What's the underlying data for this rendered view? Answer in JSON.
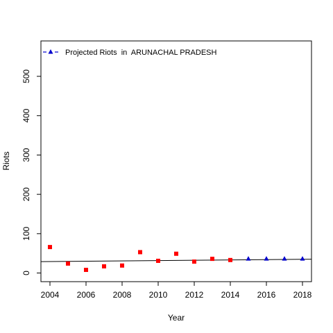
{
  "chart_data": {
    "type": "scatter",
    "xlabel": "Year",
    "ylabel": "Riots",
    "xlim": [
      2003.5,
      2018.5
    ],
    "ylim": [
      -22,
      590
    ],
    "x_ticks": [
      2004,
      2006,
      2008,
      2010,
      2012,
      2014,
      2016,
      2018
    ],
    "y_ticks": [
      0,
      100,
      200,
      300,
      400,
      500
    ],
    "grid": false,
    "legend_position": "top-left",
    "legend_entries": [
      "Projected Riots  in  ARUNACHAL PRADESH"
    ],
    "series": [
      {
        "marker": "square",
        "color": "#ff0000",
        "x": [
          2004,
          2005,
          2006,
          2007,
          2008,
          2009,
          2010,
          2011,
          2012,
          2013,
          2014
        ],
        "values": [
          66,
          24,
          8,
          17,
          19,
          53,
          31,
          49,
          29,
          36,
          33
        ]
      },
      {
        "name": "Projected Riots  in  ARUNACHAL PRADESH",
        "marker": "triangle",
        "color": "#0000cd",
        "x": [
          2015,
          2016,
          2017,
          2018
        ],
        "values": [
          36,
          36,
          36,
          36
        ]
      }
    ],
    "trend_line": {
      "color": "#000000",
      "x": [
        2003.5,
        2018.5
      ],
      "values": [
        29,
        35
      ]
    }
  }
}
